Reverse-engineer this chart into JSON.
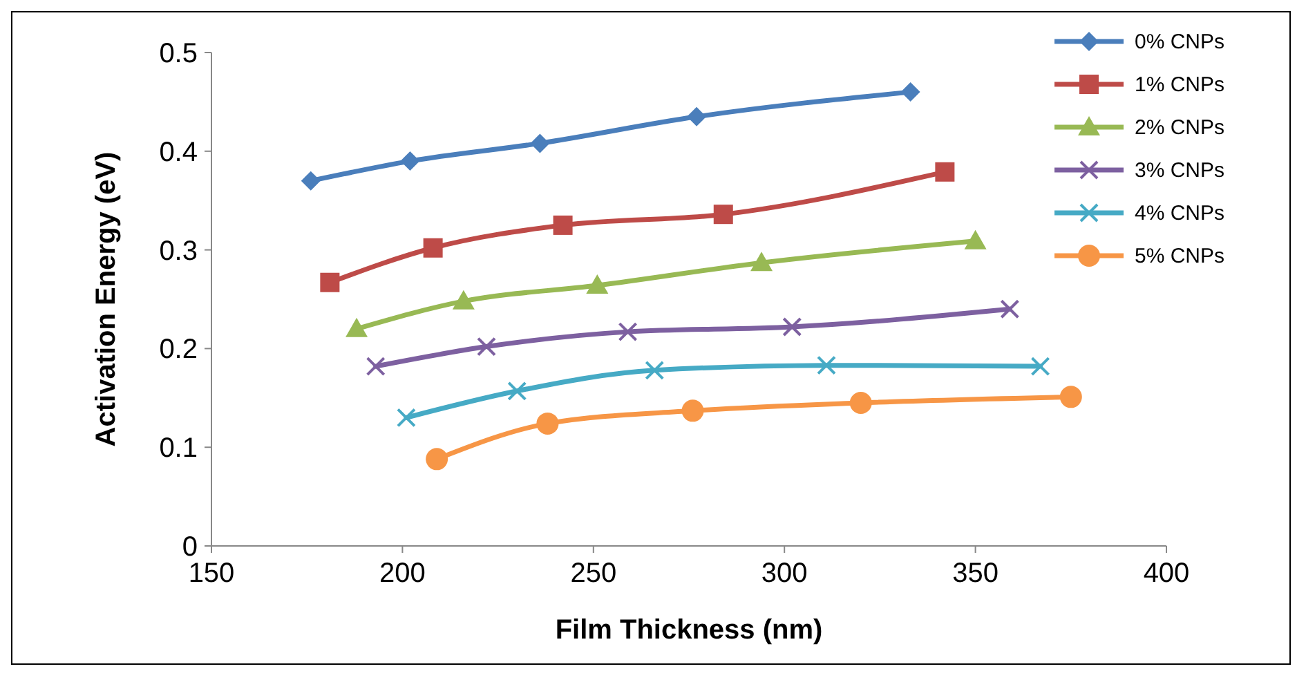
{
  "chart_data": {
    "type": "line",
    "xlabel": "Film Thickness (nm)",
    "ylabel": "Activation Energy (eV)",
    "xlim": [
      150,
      400
    ],
    "xticks": [
      150,
      200,
      250,
      300,
      350,
      400
    ],
    "ylim": [
      0,
      0.5
    ],
    "yticks": [
      0,
      0.1,
      0.2,
      0.3,
      0.4,
      0.5
    ],
    "grid": false,
    "legend": "top right",
    "series": [
      {
        "name": "0% CNPs",
        "color": "#4a7ebb",
        "marker": "diamond",
        "x": [
          176,
          202,
          236,
          277,
          333
        ],
        "values": [
          0.37,
          0.39,
          0.408,
          0.435,
          0.46
        ]
      },
      {
        "name": "1% CNPs",
        "color": "#be4b48",
        "marker": "square",
        "x": [
          181,
          208,
          242,
          284,
          342
        ],
        "values": [
          0.267,
          0.302,
          0.325,
          0.336,
          0.379
        ]
      },
      {
        "name": "2% CNPs",
        "color": "#98b954",
        "marker": "triangle",
        "x": [
          188,
          216,
          251,
          294,
          350
        ],
        "values": [
          0.22,
          0.248,
          0.264,
          0.287,
          0.309
        ]
      },
      {
        "name": "3% CNPs",
        "color": "#7d60a0",
        "marker": "cross",
        "x": [
          193,
          222,
          259,
          302,
          359
        ],
        "values": [
          0.182,
          0.202,
          0.217,
          0.222,
          0.24
        ]
      },
      {
        "name": "4% CNPs",
        "color": "#46aac5",
        "marker": "cross",
        "x": [
          201,
          230,
          266,
          311,
          367
        ],
        "values": [
          0.13,
          0.157,
          0.178,
          0.183,
          0.182
        ]
      },
      {
        "name": "5% CNPs",
        "color": "#f79646",
        "marker": "circle",
        "x": [
          209,
          238,
          276,
          320,
          375
        ],
        "values": [
          0.088,
          0.124,
          0.137,
          0.145,
          0.151
        ]
      }
    ]
  }
}
